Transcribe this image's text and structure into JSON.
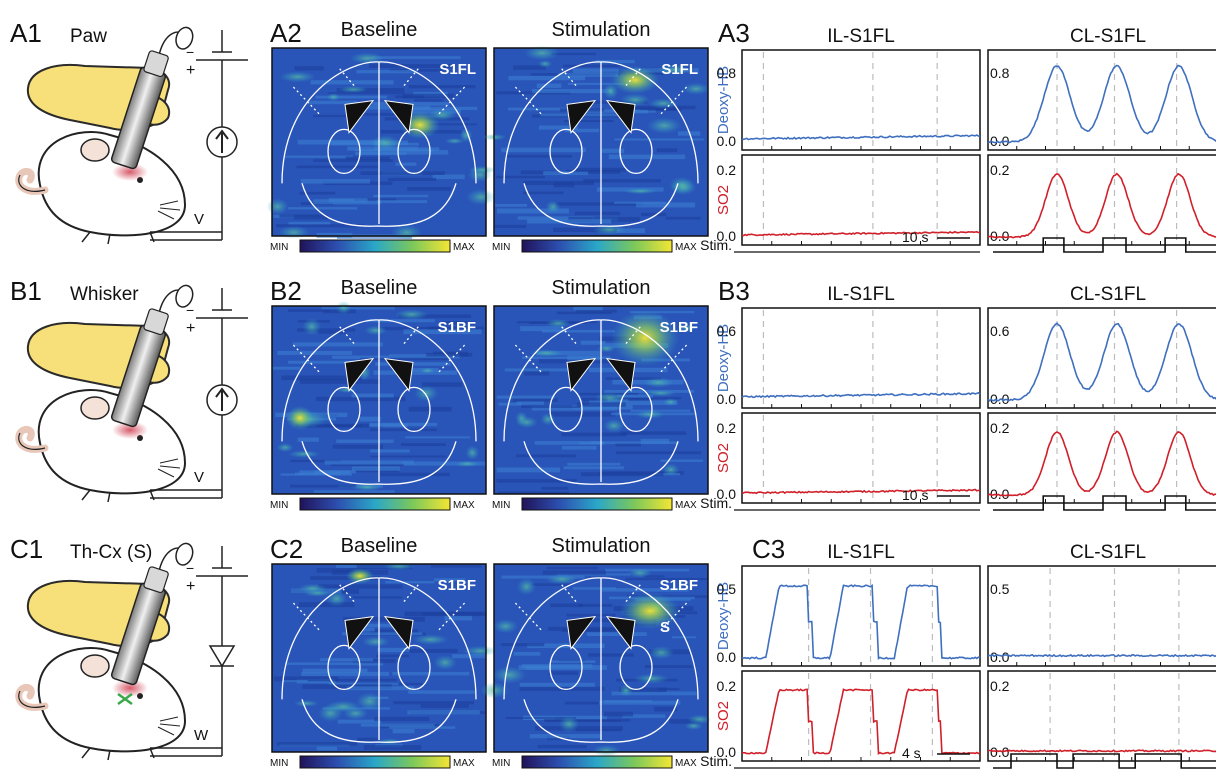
{
  "rows": [
    {
      "labels": {
        "setup": "A1",
        "maps": "A2",
        "traces": "A3"
      },
      "setup": {
        "title": "Paw",
        "node_label": "V",
        "source": "current"
      },
      "maps": {
        "baseline_title": "Baseline",
        "stimulation_title": "Stimulation",
        "region_baseline": "S1FL",
        "region_stimulation": "S1FL",
        "extra_label": "",
        "colorbar_min": "MIN",
        "colorbar_max": "MAX"
      },
      "traces": {
        "left_title": "IL-S1FL",
        "right_title": "CL-S1FL",
        "top_ylabel": "Deoxy-HB",
        "bottom_ylabel": "SO2",
        "top_ticks": [
          "0.8",
          "0.0"
        ],
        "bottom_ticks": [
          "0.2",
          "0.0"
        ],
        "stim_label": "Stim.",
        "scale_label": "10 s"
      }
    },
    {
      "labels": {
        "setup": "B1",
        "maps": "B2",
        "traces": "B3"
      },
      "setup": {
        "title": "Whisker",
        "node_label": "V",
        "source": "current"
      },
      "maps": {
        "baseline_title": "Baseline",
        "stimulation_title": "Stimulation",
        "region_baseline": "S1BF",
        "region_stimulation": "S1BF",
        "extra_label": "",
        "colorbar_min": "MIN",
        "colorbar_max": "MAX"
      },
      "traces": {
        "left_title": "IL-S1FL",
        "right_title": "CL-S1FL",
        "top_ylabel": "Deoxy-HB",
        "bottom_ylabel": "SO2",
        "top_ticks": [
          "0.6",
          "0.0"
        ],
        "bottom_ticks": [
          "0.2",
          "0.0"
        ],
        "stim_label": "Stim.",
        "scale_label": "10 s"
      }
    },
    {
      "labels": {
        "setup": "C1",
        "maps": "C2",
        "traces": "C3"
      },
      "setup": {
        "title": "Th-Cx (S)",
        "node_label": "W",
        "source": "diode"
      },
      "maps": {
        "baseline_title": "Baseline",
        "stimulation_title": "Stimulation",
        "region_baseline": "S1BF",
        "region_stimulation": "S1BF",
        "extra_label": "S",
        "colorbar_min": "MIN",
        "colorbar_max": "MAX"
      },
      "traces": {
        "left_title": "IL-S1FL",
        "right_title": "CL-S1FL",
        "top_ylabel": "Deoxy-HB",
        "bottom_ylabel": "SO2",
        "top_ticks": [
          "0.5",
          "0.0"
        ],
        "bottom_ticks": [
          "0.2",
          "0.0"
        ],
        "stim_label": "Stim.",
        "scale_label": "4 s"
      }
    }
  ],
  "colors": {
    "deoxy": "#3f6fbf",
    "so2": "#d0202a",
    "hand": "#f7df7a",
    "handEdge": "#2b2b2b",
    "map_bg": "#2a55b8",
    "map_hot": "#f2d23a",
    "dash": "#bdbdbd"
  },
  "icons": [
    "hand-icon",
    "mouse-icon",
    "probe-icon",
    "circuit-icon"
  ]
}
